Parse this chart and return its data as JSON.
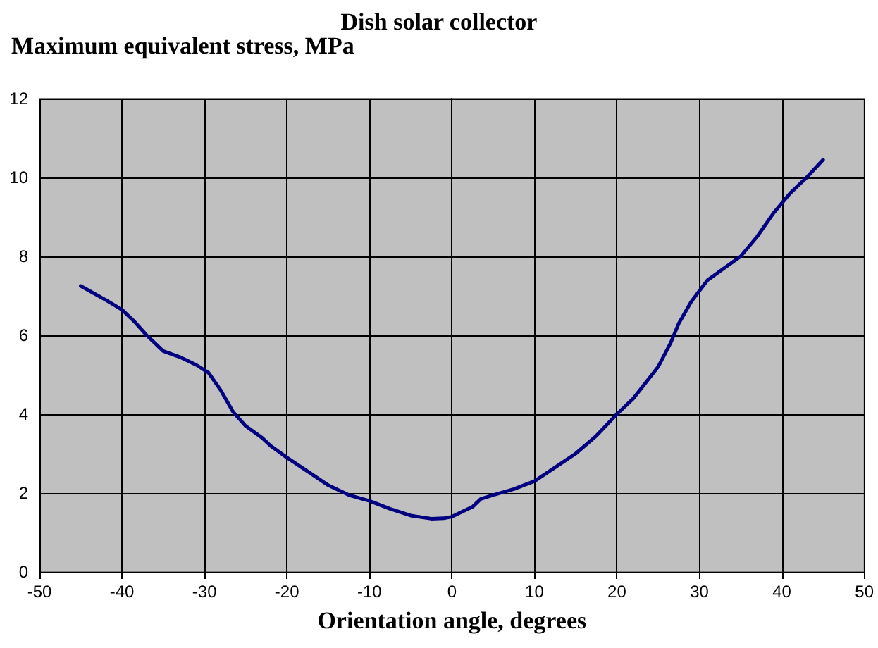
{
  "chart_data": {
    "type": "line",
    "title": "Dish solar collector",
    "xlabel": "Orientation angle, degrees",
    "ylabel": "Maximum equivalent stress, MPa",
    "series": [
      {
        "color": "#000080",
        "x": [
          -45,
          -42,
          -40,
          -38.5,
          -37,
          -35,
          -33,
          -31,
          -29.5,
          -28,
          -26.5,
          -25,
          -23,
          -22,
          -20,
          -17.5,
          -15,
          -12.5,
          -10,
          -7.5,
          -5,
          -2.5,
          -1,
          0,
          2.5,
          3.5,
          5,
          7.5,
          10,
          12.5,
          15,
          17.5,
          20,
          22,
          25,
          26.5,
          27.5,
          29,
          31,
          33,
          35,
          37,
          39,
          41,
          43,
          45
        ],
        "values": [
          7.25,
          6.9,
          6.65,
          6.35,
          6.0,
          5.6,
          5.45,
          5.25,
          5.05,
          4.6,
          4.05,
          3.7,
          3.4,
          3.2,
          2.9,
          2.55,
          2.2,
          1.95,
          1.8,
          1.6,
          1.43,
          1.35,
          1.36,
          1.4,
          1.65,
          1.85,
          1.95,
          2.1,
          2.3,
          2.65,
          3.0,
          3.45,
          4.0,
          4.4,
          5.2,
          5.8,
          6.3,
          6.85,
          7.4,
          7.7,
          8.0,
          8.5,
          9.1,
          9.6,
          10.0,
          10.45
        ]
      }
    ],
    "xlim": [
      -50,
      50
    ],
    "xticks": [
      -50,
      -40,
      -30,
      -20,
      -10,
      0,
      10,
      20,
      30,
      40,
      50
    ],
    "ylim": [
      0,
      12
    ],
    "yticks": [
      0,
      2,
      4,
      6,
      8,
      10,
      12
    ],
    "grid": true,
    "marker": "none",
    "line_style": "solid"
  }
}
